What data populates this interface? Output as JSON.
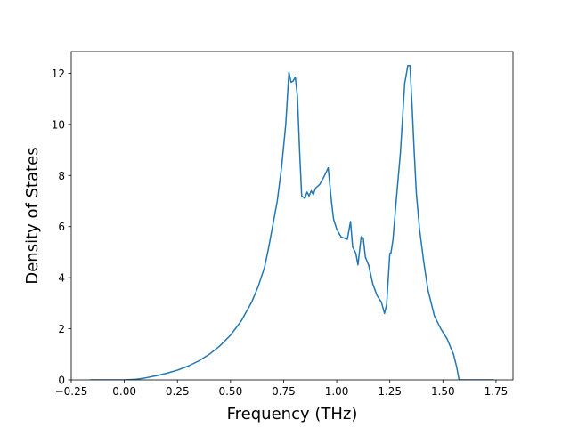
{
  "chart_data": {
    "type": "line",
    "title": "",
    "xlabel": "Frequency (THz)",
    "ylabel": "Density of States",
    "xlim": [
      -0.25,
      1.83
    ],
    "ylim": [
      0,
      12.85
    ],
    "xticks": [
      -0.25,
      0.0,
      0.25,
      0.5,
      0.75,
      1.0,
      1.25,
      1.5,
      1.75
    ],
    "xtick_labels": [
      "−0.25",
      "0.00",
      "0.25",
      "0.50",
      "0.75",
      "1.00",
      "1.25",
      "1.50",
      "1.75"
    ],
    "yticks": [
      0,
      2,
      4,
      6,
      8,
      10,
      12
    ],
    "ytick_labels": [
      "0",
      "2",
      "4",
      "6",
      "8",
      "10",
      "12"
    ],
    "grid": false,
    "legend": "none",
    "series": [
      {
        "color": "#1f77b4",
        "x": [
          -0.16,
          0.0,
          0.05,
          0.1,
          0.15,
          0.2,
          0.25,
          0.3,
          0.35,
          0.4,
          0.45,
          0.5,
          0.55,
          0.6,
          0.63,
          0.66,
          0.68,
          0.7,
          0.72,
          0.74,
          0.76,
          0.775,
          0.785,
          0.795,
          0.805,
          0.815,
          0.825,
          0.835,
          0.85,
          0.86,
          0.87,
          0.88,
          0.89,
          0.9,
          0.92,
          0.94,
          0.96,
          0.975,
          0.985,
          1.0,
          1.02,
          1.05,
          1.065,
          1.075,
          1.09,
          1.1,
          1.115,
          1.125,
          1.135,
          1.15,
          1.17,
          1.19,
          1.21,
          1.225,
          1.235,
          1.25,
          1.255,
          1.265,
          1.28,
          1.3,
          1.32,
          1.335,
          1.345,
          1.355,
          1.365,
          1.375,
          1.39,
          1.41,
          1.43,
          1.46,
          1.49,
          1.52,
          1.55,
          1.565,
          1.575,
          1.58,
          1.6,
          1.74
        ],
        "y": [
          0.0,
          0.0,
          0.02,
          0.08,
          0.16,
          0.26,
          0.38,
          0.54,
          0.74,
          1.0,
          1.33,
          1.75,
          2.3,
          3.05,
          3.65,
          4.4,
          5.2,
          6.1,
          7.0,
          8.3,
          10.0,
          12.05,
          11.65,
          11.7,
          11.85,
          11.1,
          9.0,
          7.2,
          7.1,
          7.35,
          7.2,
          7.4,
          7.25,
          7.5,
          7.65,
          7.95,
          8.3,
          7.0,
          6.3,
          5.9,
          5.6,
          5.5,
          6.2,
          5.2,
          4.95,
          4.5,
          5.6,
          5.55,
          4.8,
          4.5,
          3.75,
          3.3,
          3.05,
          2.6,
          2.95,
          4.95,
          4.95,
          5.5,
          7.0,
          8.9,
          11.6,
          12.3,
          12.3,
          10.7,
          8.9,
          7.3,
          5.9,
          4.6,
          3.5,
          2.5,
          2.0,
          1.6,
          1.0,
          0.5,
          0.05,
          0.0,
          0.0,
          0.0
        ]
      }
    ]
  }
}
